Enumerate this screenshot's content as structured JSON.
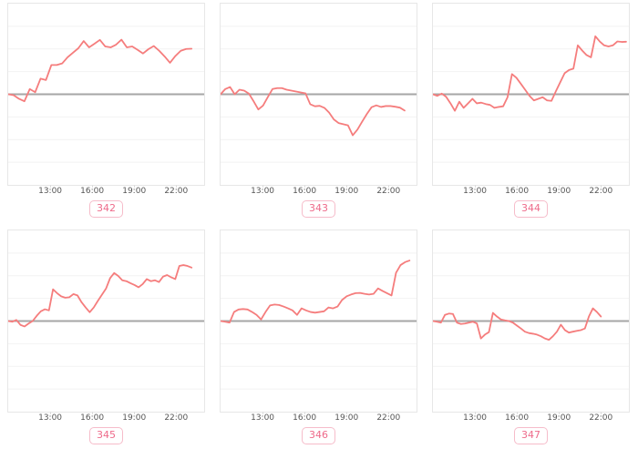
{
  "page": {
    "background": "#ffffff"
  },
  "colors": {
    "line": "#f57d7d",
    "zero_line": "#a6a6a6",
    "gridline": "#f2f2f2",
    "chart_border": "#e7e7e7",
    "tick_label": "#555555",
    "tick_mark": "#dddddd",
    "badge_text": "#ee6a8a",
    "badge_border": "#f6bcca"
  },
  "x_axis": {
    "range_hours": [
      10,
      24
    ],
    "tick_hours": [
      13,
      16,
      19,
      22
    ],
    "tick_labels": [
      "13:00",
      "16:00",
      "19:00",
      "22:00"
    ]
  },
  "y_axis": {
    "ylim": [
      -4,
      4
    ],
    "gridline_step": 1,
    "zero_line": 0,
    "grid": "horizontal-only",
    "tick_labels_visible": false
  },
  "chart_data": [
    {
      "type": "line",
      "label": "342",
      "x_start_hour": 10,
      "x_end_hour": 23.1,
      "values": [
        0.0,
        -0.04,
        -0.2,
        -0.31,
        0.23,
        0.09,
        0.69,
        0.63,
        1.29,
        1.29,
        1.36,
        1.63,
        1.83,
        2.03,
        2.35,
        2.07,
        2.23,
        2.4,
        2.11,
        2.07,
        2.19,
        2.41,
        2.07,
        2.11,
        1.96,
        1.8,
        1.99,
        2.13,
        1.92,
        1.67,
        1.39,
        1.69,
        1.92,
        2.0,
        2.01
      ]
    },
    {
      "type": "line",
      "label": "343",
      "x_start_hour": 10,
      "x_end_hour": 23.15,
      "values": [
        0.0,
        0.23,
        0.32,
        0.0,
        0.2,
        0.16,
        0.03,
        -0.31,
        -0.67,
        -0.5,
        -0.13,
        0.23,
        0.27,
        0.27,
        0.2,
        0.16,
        0.12,
        0.08,
        0.04,
        -0.44,
        -0.53,
        -0.51,
        -0.6,
        -0.81,
        -1.11,
        -1.27,
        -1.32,
        -1.37,
        -1.81,
        -1.56,
        -1.21,
        -0.87,
        -0.57,
        -0.49,
        -0.56,
        -0.52,
        -0.52,
        -0.55,
        -0.59,
        -0.72
      ]
    },
    {
      "type": "line",
      "label": "344",
      "x_start_hour": 10,
      "x_end_hour": 23.8,
      "values": [
        0.0,
        -0.07,
        0.03,
        -0.11,
        -0.4,
        -0.73,
        -0.33,
        -0.6,
        -0.4,
        -0.2,
        -0.4,
        -0.37,
        -0.43,
        -0.47,
        -0.6,
        -0.56,
        -0.53,
        -0.13,
        0.89,
        0.73,
        0.47,
        0.2,
        -0.07,
        -0.27,
        -0.2,
        -0.13,
        -0.27,
        -0.29,
        0.13,
        0.53,
        0.93,
        1.07,
        1.13,
        2.16,
        1.93,
        1.73,
        1.63,
        2.56,
        2.33,
        2.16,
        2.11,
        2.16,
        2.33,
        2.31,
        2.32
      ]
    },
    {
      "type": "line",
      "label": "345",
      "x_start_hour": 10,
      "x_end_hour": 23.1,
      "values": [
        0.0,
        -0.03,
        0.05,
        -0.17,
        -0.24,
        -0.11,
        0.0,
        0.23,
        0.43,
        0.52,
        0.47,
        1.4,
        1.23,
        1.09,
        1.03,
        1.05,
        1.19,
        1.13,
        0.83,
        0.6,
        0.39,
        0.6,
        0.89,
        1.16,
        1.43,
        1.89,
        2.12,
        1.99,
        1.8,
        1.76,
        1.67,
        1.59,
        1.49,
        1.63,
        1.85,
        1.76,
        1.8,
        1.72,
        1.96,
        2.03,
        1.93,
        1.85,
        2.43,
        2.47,
        2.43,
        2.36
      ]
    },
    {
      "type": "line",
      "label": "346",
      "x_start_hour": 10,
      "x_end_hour": 23.5,
      "values": [
        0.0,
        -0.03,
        -0.07,
        0.4,
        0.51,
        0.53,
        0.51,
        0.4,
        0.27,
        0.07,
        0.4,
        0.69,
        0.73,
        0.71,
        0.64,
        0.56,
        0.47,
        0.27,
        0.56,
        0.47,
        0.4,
        0.37,
        0.4,
        0.43,
        0.6,
        0.56,
        0.64,
        0.93,
        1.09,
        1.17,
        1.23,
        1.24,
        1.2,
        1.17,
        1.2,
        1.44,
        1.33,
        1.23,
        1.13,
        2.13,
        2.47,
        2.6,
        2.67
      ]
    },
    {
      "type": "line",
      "label": "347",
      "x_start_hour": 10,
      "x_end_hour": 22.0,
      "values": [
        0.0,
        -0.03,
        -0.07,
        0.27,
        0.33,
        0.31,
        -0.07,
        -0.13,
        -0.11,
        -0.07,
        -0.03,
        -0.11,
        -0.77,
        -0.6,
        -0.49,
        0.36,
        0.2,
        0.07,
        0.03,
        0.0,
        -0.07,
        -0.2,
        -0.33,
        -0.47,
        -0.53,
        -0.56,
        -0.6,
        -0.67,
        -0.77,
        -0.83,
        -0.67,
        -0.47,
        -0.16,
        -0.4,
        -0.51,
        -0.47,
        -0.43,
        -0.4,
        -0.33,
        0.2,
        0.56,
        0.4,
        0.2
      ]
    }
  ]
}
